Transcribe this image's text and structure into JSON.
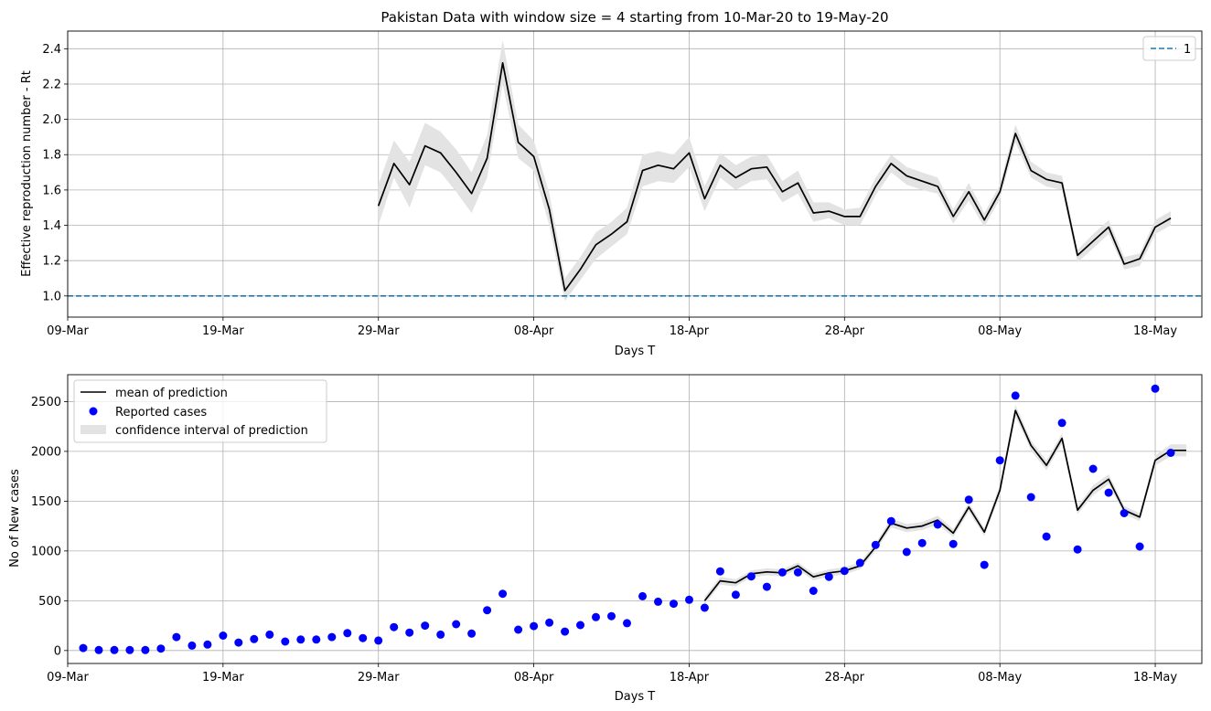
{
  "chart_data": [
    {
      "type": "line",
      "title": "Pakistan Data with window size = 4 starting from 10-Mar-20 to 19-May-20",
      "xlabel": "Days T",
      "ylabel": "Effective reproduction number - Rt",
      "x_axis": "date",
      "xlim": [
        "2020-03-09",
        "2020-05-21"
      ],
      "ylim": [
        0.88,
        2.5
      ],
      "x_ticks": [
        {
          "date": "2020-03-09",
          "label": "09-Mar"
        },
        {
          "date": "2020-03-19",
          "label": "19-Mar"
        },
        {
          "date": "2020-03-29",
          "label": "29-Mar"
        },
        {
          "date": "2020-04-08",
          "label": "08-Apr"
        },
        {
          "date": "2020-04-18",
          "label": "18-Apr"
        },
        {
          "date": "2020-04-28",
          "label": "28-Apr"
        },
        {
          "date": "2020-05-08",
          "label": "08-May"
        },
        {
          "date": "2020-05-18",
          "label": "18-May"
        }
      ],
      "y_ticks": [
        {
          "value": 1.0,
          "label": "1.0"
        },
        {
          "value": 1.2,
          "label": "1.2"
        },
        {
          "value": 1.4,
          "label": "1.4"
        },
        {
          "value": 1.6,
          "label": "1.6"
        },
        {
          "value": 1.8,
          "label": "1.8"
        },
        {
          "value": 2.0,
          "label": "2.0"
        },
        {
          "value": 2.2,
          "label": "2.2"
        },
        {
          "value": 2.4,
          "label": "2.4"
        }
      ],
      "grid": true,
      "legend_position": "top-right",
      "legend": [
        {
          "label": "1",
          "style": "dashed",
          "color": "#1f77b4"
        }
      ],
      "reference_line": {
        "y": 1.0,
        "color": "#1f77b4",
        "style": "dashed"
      },
      "series": [
        {
          "type": "line",
          "color": "#000000",
          "band_color": "#e3e3e3",
          "x": [
            "2020-03-29",
            "2020-03-30",
            "2020-03-31",
            "2020-04-01",
            "2020-04-02",
            "2020-04-03",
            "2020-04-04",
            "2020-04-05",
            "2020-04-06",
            "2020-04-07",
            "2020-04-08",
            "2020-04-09",
            "2020-04-10",
            "2020-04-11",
            "2020-04-12",
            "2020-04-13",
            "2020-04-14",
            "2020-04-15",
            "2020-04-16",
            "2020-04-17",
            "2020-04-18",
            "2020-04-19",
            "2020-04-20",
            "2020-04-21",
            "2020-04-22",
            "2020-04-23",
            "2020-04-24",
            "2020-04-25",
            "2020-04-26",
            "2020-04-27",
            "2020-04-28",
            "2020-04-29",
            "2020-04-30",
            "2020-05-01",
            "2020-05-02",
            "2020-05-03",
            "2020-05-04",
            "2020-05-05",
            "2020-05-06",
            "2020-05-07",
            "2020-05-08",
            "2020-05-09",
            "2020-05-10",
            "2020-05-11",
            "2020-05-12",
            "2020-05-13",
            "2020-05-14",
            "2020-05-15",
            "2020-05-16",
            "2020-05-17",
            "2020-05-18",
            "2020-05-19"
          ],
          "y": [
            1.51,
            1.75,
            1.63,
            1.85,
            1.81,
            1.7,
            1.58,
            1.78,
            2.32,
            1.87,
            1.79,
            1.49,
            1.03,
            1.15,
            1.29,
            1.35,
            1.42,
            1.71,
            1.74,
            1.72,
            1.81,
            1.55,
            1.74,
            1.67,
            1.72,
            1.73,
            1.59,
            1.64,
            1.47,
            1.48,
            1.45,
            1.45,
            1.62,
            1.75,
            1.68,
            1.65,
            1.62,
            1.45,
            1.59,
            1.43,
            1.59,
            1.92,
            1.71,
            1.66,
            1.64,
            1.23,
            1.31,
            1.39,
            1.18,
            1.21,
            1.39,
            1.44
          ],
          "lower": [
            1.4,
            1.67,
            1.5,
            1.74,
            1.7,
            1.59,
            1.47,
            1.67,
            2.2,
            1.78,
            1.71,
            1.4,
            0.97,
            1.09,
            1.21,
            1.28,
            1.35,
            1.62,
            1.65,
            1.64,
            1.73,
            1.48,
            1.67,
            1.6,
            1.65,
            1.66,
            1.53,
            1.58,
            1.42,
            1.44,
            1.4,
            1.4,
            1.57,
            1.7,
            1.63,
            1.6,
            1.58,
            1.41,
            1.54,
            1.39,
            1.55,
            1.87,
            1.67,
            1.62,
            1.6,
            1.19,
            1.27,
            1.35,
            1.15,
            1.17,
            1.35,
            1.4
          ],
          "upper": [
            1.63,
            1.88,
            1.76,
            1.98,
            1.93,
            1.83,
            1.7,
            1.91,
            2.45,
            1.97,
            1.88,
            1.58,
            1.1,
            1.22,
            1.36,
            1.42,
            1.5,
            1.8,
            1.82,
            1.8,
            1.9,
            1.62,
            1.81,
            1.74,
            1.79,
            1.8,
            1.65,
            1.71,
            1.53,
            1.53,
            1.49,
            1.5,
            1.67,
            1.8,
            1.73,
            1.7,
            1.67,
            1.49,
            1.64,
            1.47,
            1.63,
            1.97,
            1.76,
            1.7,
            1.68,
            1.26,
            1.35,
            1.43,
            1.22,
            1.24,
            1.43,
            1.48
          ]
        }
      ]
    },
    {
      "type": "line",
      "title": "",
      "xlabel": "Days T",
      "ylabel": "No of New cases",
      "x_axis": "date",
      "xlim": [
        "2020-03-09",
        "2020-05-21"
      ],
      "ylim": [
        -130,
        2770
      ],
      "x_ticks": [
        {
          "date": "2020-03-09",
          "label": "09-Mar"
        },
        {
          "date": "2020-03-19",
          "label": "19-Mar"
        },
        {
          "date": "2020-03-29",
          "label": "29-Mar"
        },
        {
          "date": "2020-04-08",
          "label": "08-Apr"
        },
        {
          "date": "2020-04-18",
          "label": "18-Apr"
        },
        {
          "date": "2020-04-28",
          "label": "28-Apr"
        },
        {
          "date": "2020-05-08",
          "label": "08-May"
        },
        {
          "date": "2020-05-18",
          "label": "18-May"
        }
      ],
      "y_ticks": [
        {
          "value": 0,
          "label": "0"
        },
        {
          "value": 500,
          "label": "500"
        },
        {
          "value": 1000,
          "label": "1000"
        },
        {
          "value": 1500,
          "label": "1500"
        },
        {
          "value": 2000,
          "label": "2000"
        },
        {
          "value": 2500,
          "label": "2500"
        }
      ],
      "grid": true,
      "legend_position": "top-left",
      "legend": [
        {
          "label": "mean of prediction",
          "style": "line",
          "color": "#000000"
        },
        {
          "label": "Reported cases",
          "style": "marker",
          "color": "#0000ff"
        },
        {
          "label": "confidence interval of prediction",
          "style": "patch",
          "color": "#e3e3e3"
        }
      ],
      "series": [
        {
          "type": "line",
          "color": "#000000",
          "band_color": "#e3e3e3",
          "x": [
            "2020-04-19",
            "2020-04-20",
            "2020-04-21",
            "2020-04-22",
            "2020-04-23",
            "2020-04-24",
            "2020-04-25",
            "2020-04-26",
            "2020-04-27",
            "2020-04-28",
            "2020-04-29",
            "2020-04-30",
            "2020-05-01",
            "2020-05-02",
            "2020-05-03",
            "2020-05-04",
            "2020-05-05",
            "2020-05-06",
            "2020-05-07",
            "2020-05-08",
            "2020-05-09",
            "2020-05-10",
            "2020-05-11",
            "2020-05-12",
            "2020-05-13",
            "2020-05-14",
            "2020-05-15",
            "2020-05-16",
            "2020-05-17",
            "2020-05-18",
            "2020-05-19",
            "2020-05-20"
          ],
          "y": [
            500,
            700,
            680,
            770,
            790,
            780,
            850,
            740,
            780,
            800,
            850,
            1040,
            1280,
            1230,
            1250,
            1310,
            1180,
            1440,
            1190,
            1610,
            2410,
            2060,
            1860,
            2130,
            1410,
            1610,
            1720,
            1410,
            1340,
            1910,
            2010,
            2010
          ],
          "lower": [
            460,
            660,
            645,
            735,
            755,
            745,
            815,
            705,
            745,
            765,
            815,
            1000,
            1235,
            1190,
            1210,
            1265,
            1140,
            1395,
            1150,
            1560,
            2350,
            2010,
            1810,
            2080,
            1370,
            1560,
            1670,
            1370,
            1300,
            1860,
            1950,
            1950
          ],
          "upper": [
            540,
            740,
            715,
            805,
            825,
            815,
            885,
            775,
            815,
            835,
            885,
            1080,
            1325,
            1270,
            1290,
            1355,
            1220,
            1485,
            1230,
            1660,
            2470,
            2110,
            1910,
            2180,
            1450,
            1660,
            1770,
            1450,
            1380,
            1960,
            2070,
            2070
          ]
        },
        {
          "type": "scatter",
          "color": "#0000ff",
          "x": [
            "2020-03-10",
            "2020-03-11",
            "2020-03-12",
            "2020-03-13",
            "2020-03-14",
            "2020-03-15",
            "2020-03-16",
            "2020-03-17",
            "2020-03-18",
            "2020-03-19",
            "2020-03-20",
            "2020-03-21",
            "2020-03-22",
            "2020-03-23",
            "2020-03-24",
            "2020-03-25",
            "2020-03-26",
            "2020-03-27",
            "2020-03-28",
            "2020-03-29",
            "2020-03-30",
            "2020-03-31",
            "2020-04-01",
            "2020-04-02",
            "2020-04-03",
            "2020-04-04",
            "2020-04-05",
            "2020-04-06",
            "2020-04-07",
            "2020-04-08",
            "2020-04-09",
            "2020-04-10",
            "2020-04-11",
            "2020-04-12",
            "2020-04-13",
            "2020-04-14",
            "2020-04-15",
            "2020-04-16",
            "2020-04-17",
            "2020-04-18",
            "2020-04-19",
            "2020-04-20",
            "2020-04-21",
            "2020-04-22",
            "2020-04-23",
            "2020-04-24",
            "2020-04-25",
            "2020-04-26",
            "2020-04-27",
            "2020-04-28",
            "2020-04-29",
            "2020-04-30",
            "2020-05-01",
            "2020-05-02",
            "2020-05-03",
            "2020-05-04",
            "2020-05-05",
            "2020-05-06",
            "2020-05-07",
            "2020-05-08",
            "2020-05-09",
            "2020-05-10",
            "2020-05-11",
            "2020-05-12",
            "2020-05-13",
            "2020-05-14",
            "2020-05-15",
            "2020-05-16",
            "2020-05-17",
            "2020-05-18",
            "2020-05-19"
          ],
          "y": [
            25,
            5,
            5,
            5,
            5,
            20,
            135,
            50,
            60,
            150,
            80,
            115,
            160,
            90,
            110,
            110,
            135,
            175,
            125,
            100,
            235,
            180,
            250,
            160,
            265,
            170,
            405,
            570,
            210,
            245,
            280,
            190,
            255,
            335,
            345,
            275,
            545,
            490,
            470,
            510,
            430,
            795,
            560,
            745,
            640,
            785,
            785,
            600,
            740,
            800,
            880,
            1060,
            1300,
            990,
            1080,
            1265,
            1070,
            1515,
            860,
            1910,
            2560,
            1540,
            1145,
            2285,
            1015,
            1825,
            1585,
            1380,
            1045,
            2630,
            1985
          ]
        }
      ]
    }
  ]
}
